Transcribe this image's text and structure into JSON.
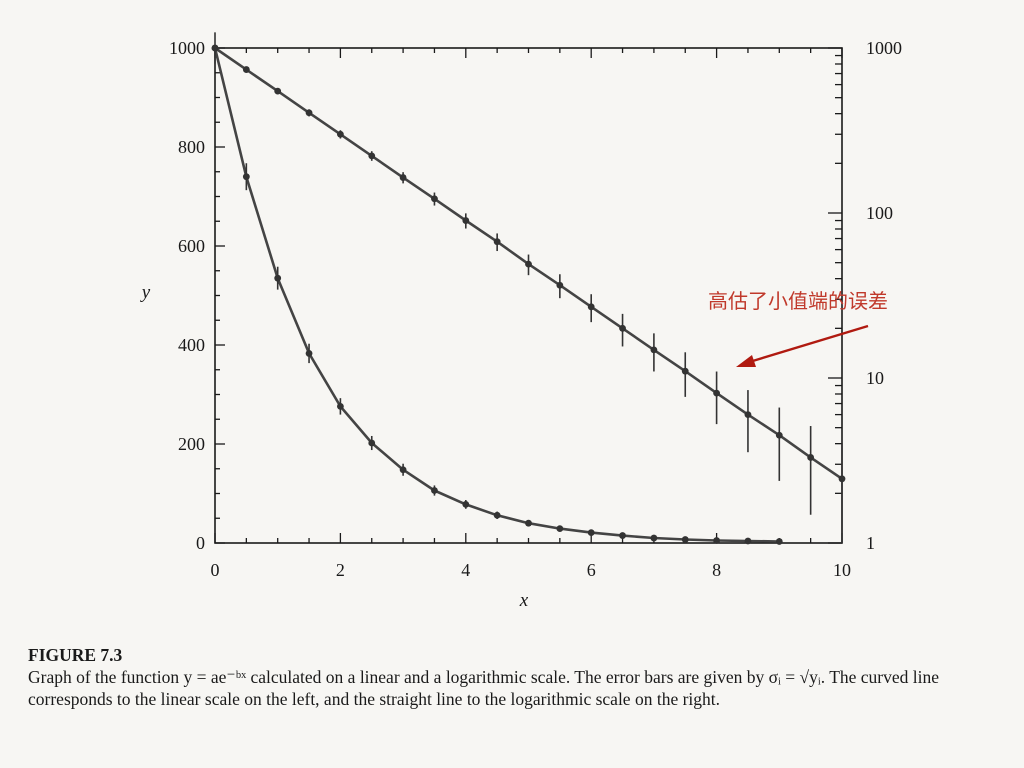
{
  "chart_data": {
    "type": "line",
    "xlabel": "x",
    "ylabel": "y",
    "xlim": [
      0,
      10
    ],
    "ylim_left": [
      0,
      1000
    ],
    "ylim_right_log": [
      1,
      1000
    ],
    "x_ticks": [
      "0",
      "2",
      "4",
      "6",
      "8",
      "10"
    ],
    "y_ticks_left": [
      "0",
      "200",
      "400",
      "600",
      "800",
      "1000"
    ],
    "y_ticks_right": [
      "1",
      "10",
      "100",
      "1000"
    ],
    "function": "y = a e^{-bx}",
    "series": [
      {
        "axis": "left-linear",
        "x": [
          0,
          0.5,
          1,
          1.5,
          2,
          2.5,
          3,
          3.5,
          4,
          4.5,
          5,
          5.5,
          6,
          6.5,
          7,
          7.5,
          8,
          8.5,
          9
        ],
        "y": [
          1000,
          740,
          535,
          383,
          276,
          202,
          148,
          106,
          78,
          56,
          40,
          29,
          21,
          15,
          10,
          7,
          5,
          4,
          3
        ]
      },
      {
        "axis": "right-log",
        "x": [
          0,
          0.5,
          1,
          1.5,
          2,
          2.5,
          3,
          3.5,
          4,
          4.5,
          5,
          5.5,
          6,
          6.5,
          7,
          7.5,
          8,
          8.5,
          9,
          9.5,
          10
        ],
        "y": [
          1000,
          740,
          548,
          405,
          300,
          222,
          164,
          122,
          90,
          67,
          49,
          36.5,
          27,
          20,
          14.8,
          11,
          8.1,
          6,
          4.5,
          3.3,
          2.45
        ]
      }
    ],
    "annotation": {
      "text": "高估了小值端的误差",
      "color": "#c0392b"
    }
  },
  "caption": {
    "title": "FIGURE 7.3",
    "text": "Graph of the function y = ae⁻ᵇˣ calculated on a linear and a logarithmic scale. The error bars are given by σᵢ = √yᵢ. The curved line corresponds to the linear scale on the left, and the straight line to the logarithmic scale on the right."
  }
}
